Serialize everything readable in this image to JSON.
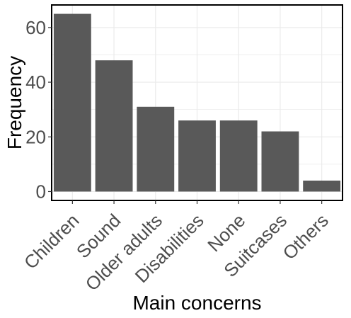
{
  "chart_data": {
    "type": "bar",
    "categories": [
      "Children",
      "Sound",
      "Older adults",
      "Disabilities",
      "None",
      "Suitcases",
      "Others"
    ],
    "values": [
      65,
      48,
      31,
      26,
      26,
      22,
      4
    ],
    "title": "",
    "xlabel": "Main concerns",
    "ylabel": "Frequency",
    "ylim": [
      -3.25,
      68.25
    ],
    "yticks": [
      0,
      20,
      40,
      60
    ],
    "grid": true,
    "legend": "none",
    "bar_color": "#595959",
    "grid_color": "#ebebeb"
  }
}
